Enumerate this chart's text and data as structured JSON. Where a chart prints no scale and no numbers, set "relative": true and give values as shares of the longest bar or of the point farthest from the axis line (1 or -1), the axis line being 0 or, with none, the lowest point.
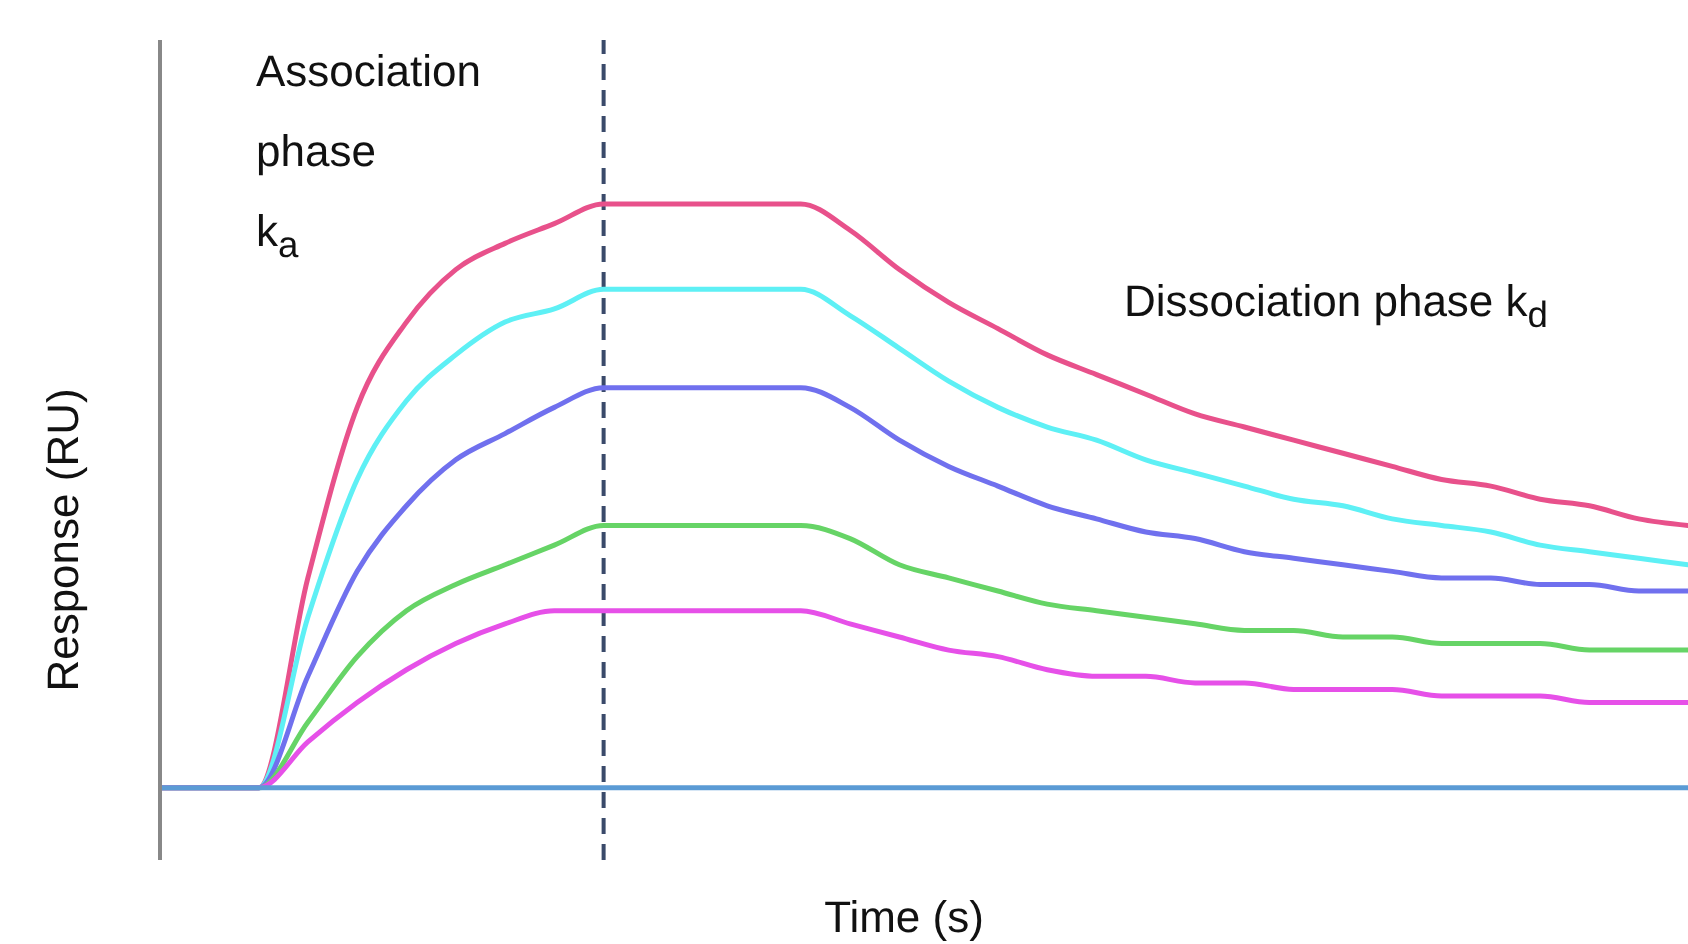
{
  "chart_data": {
    "type": "line",
    "relative": true,
    "xlabel": "Time (s)",
    "ylabel": "Response (RU)",
    "categories": [
      null,
      null,
      null,
      null,
      null,
      null,
      null,
      null,
      null,
      null,
      null,
      null,
      null,
      null,
      null,
      null,
      null,
      null,
      null,
      null,
      null,
      null,
      null,
      null,
      null,
      null,
      null,
      null,
      null,
      null,
      null,
      null
    ],
    "series": [
      {
        "color": "#e8518b",
        "values": [
          0.11,
          0.11,
          0.11,
          0.43,
          0.69,
          0.82,
          0.9,
          0.94,
          0.97,
          1,
          1,
          1,
          1,
          1,
          0.96,
          0.9,
          0.85,
          0.81,
          0.77,
          0.74,
          0.71,
          0.68,
          0.66,
          0.64,
          0.62,
          0.6,
          0.58,
          0.57,
          0.55,
          0.54,
          0.52,
          0.51
        ]
      },
      {
        "color": "#5ef0f5",
        "values": [
          0.11,
          0.11,
          0.11,
          0.37,
          0.58,
          0.7,
          0.77,
          0.82,
          0.84,
          0.87,
          0.87,
          0.87,
          0.87,
          0.87,
          0.83,
          0.78,
          0.73,
          0.69,
          0.66,
          0.64,
          0.61,
          0.59,
          0.57,
          0.55,
          0.54,
          0.52,
          0.51,
          0.5,
          0.48,
          0.47,
          0.46,
          0.45
        ]
      },
      {
        "color": "#7070ee",
        "values": [
          0.11,
          0.11,
          0.11,
          0.28,
          0.44,
          0.54,
          0.61,
          0.65,
          0.69,
          0.72,
          0.72,
          0.72,
          0.72,
          0.72,
          0.69,
          0.64,
          0.6,
          0.57,
          0.54,
          0.52,
          0.5,
          0.49,
          0.47,
          0.46,
          0.45,
          0.44,
          0.43,
          0.43,
          0.42,
          0.42,
          0.41,
          0.41
        ]
      },
      {
        "color": "#66d466",
        "values": [
          0.11,
          0.11,
          0.11,
          0.21,
          0.31,
          0.38,
          0.42,
          0.45,
          0.48,
          0.51,
          0.51,
          0.51,
          0.51,
          0.51,
          0.49,
          0.45,
          0.43,
          0.41,
          0.39,
          0.38,
          0.37,
          0.36,
          0.35,
          0.35,
          0.34,
          0.34,
          0.33,
          0.33,
          0.33,
          0.32,
          0.32,
          0.32
        ]
      },
      {
        "color": "#e650e8",
        "values": [
          0.11,
          0.11,
          0.11,
          0.18,
          0.24,
          0.29,
          0.33,
          0.36,
          0.38,
          0.38,
          0.38,
          0.38,
          0.38,
          0.38,
          0.36,
          0.34,
          0.32,
          0.31,
          0.29,
          0.28,
          0.28,
          0.27,
          0.27,
          0.26,
          0.26,
          0.26,
          0.25,
          0.25,
          0.25,
          0.24,
          0.24,
          0.24
        ]
      },
      {
        "color": "#5b9bd5",
        "values": [
          0.11,
          0.11,
          0.11,
          0.11,
          0.11,
          0.11,
          0.11,
          0.11,
          0.11,
          0.11,
          0.11,
          0.11,
          0.11,
          0.11,
          0.11,
          0.11,
          0.11,
          0.11,
          0.11,
          0.11,
          0.11,
          0.11,
          0.11,
          0.11,
          0.11,
          0.11,
          0.11,
          0.11,
          0.11,
          0.11,
          0.11,
          0.11
        ]
      }
    ],
    "annotations": [
      "Association phase k$_{a}$",
      "Dissociation phase k$_{d}$"
    ],
    "marker": "none",
    "line_style": "solid",
    "grid": false,
    "legend": false
  }
}
